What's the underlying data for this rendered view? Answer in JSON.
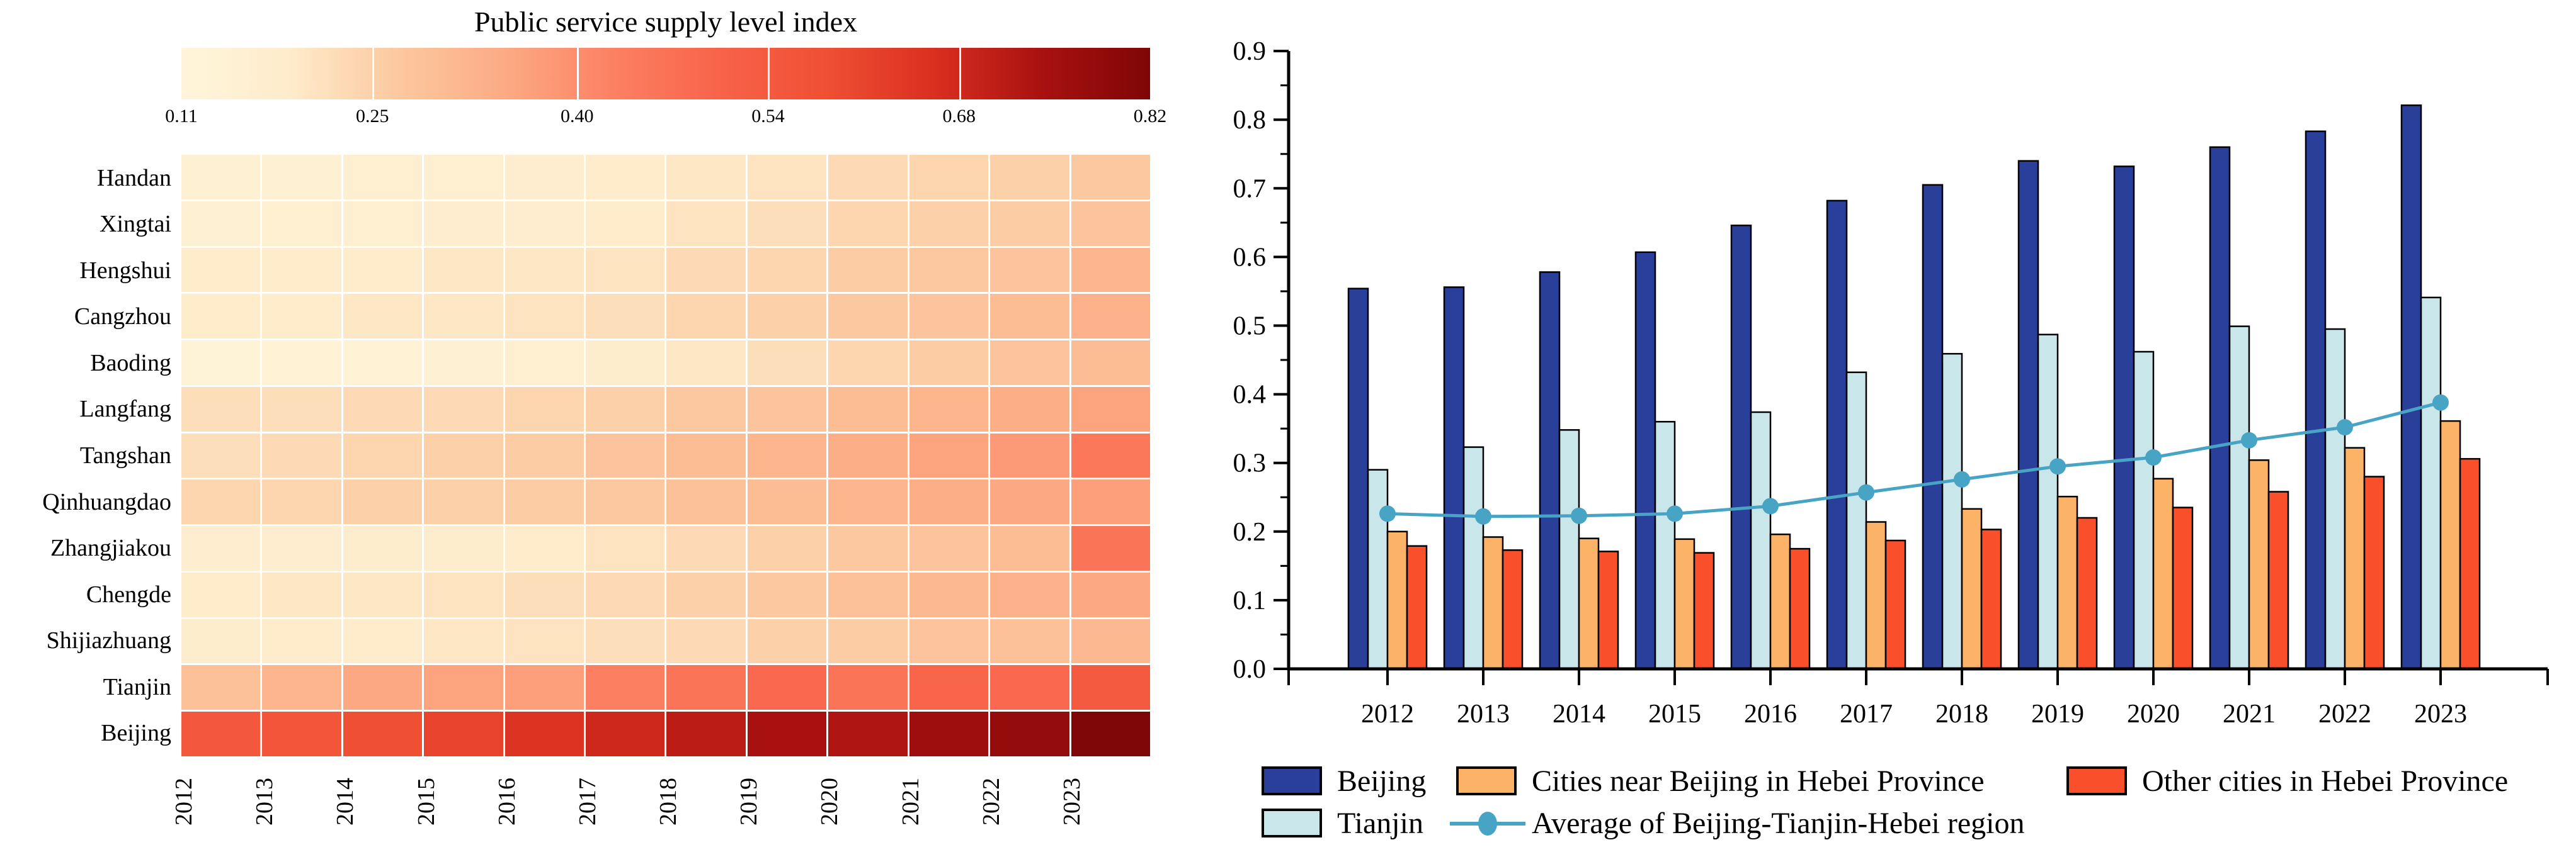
{
  "chart_data": [
    {
      "type": "heatmap",
      "title": "Public service supply level index",
      "colorbar": {
        "tick_labels": [
          "0.11",
          "0.25",
          "0.40",
          "0.54",
          "0.68",
          "0.82"
        ],
        "tick_values": [
          0.11,
          0.25,
          0.4,
          0.54,
          0.68,
          0.82
        ],
        "vmin": 0.11,
        "vmax": 0.82,
        "colormap_stops": [
          "#fff5db",
          "#feeccb",
          "#fcc9a0",
          "#fcab84",
          "#fc8163",
          "#f8634a",
          "#ef4f33",
          "#d92f20",
          "#a81110",
          "#7f0606"
        ]
      },
      "years": [
        "2012",
        "2013",
        "2014",
        "2015",
        "2016",
        "2017",
        "2018",
        "2019",
        "2020",
        "2021",
        "2022",
        "2023"
      ],
      "cities": [
        "Handan",
        "Xingtai",
        "Hengshui",
        "Cangzhou",
        "Baoding",
        "Langfang",
        "Tangshan",
        "Qinhuangdao",
        "Zhangjiakou",
        "Chengde",
        "Shijiazhuang",
        "Tianjin",
        "Beijing"
      ],
      "values": [
        [
          0.15,
          0.15,
          0.16,
          0.16,
          0.17,
          0.19,
          0.2,
          0.21,
          0.23,
          0.24,
          0.25,
          0.27
        ],
        [
          0.15,
          0.16,
          0.16,
          0.17,
          0.17,
          0.19,
          0.21,
          0.22,
          0.24,
          0.25,
          0.26,
          0.28
        ],
        [
          0.19,
          0.19,
          0.19,
          0.2,
          0.2,
          0.21,
          0.23,
          0.24,
          0.26,
          0.27,
          0.28,
          0.32
        ],
        [
          0.19,
          0.19,
          0.2,
          0.2,
          0.21,
          0.22,
          0.24,
          0.25,
          0.27,
          0.28,
          0.3,
          0.33
        ],
        [
          0.13,
          0.14,
          0.14,
          0.15,
          0.16,
          0.18,
          0.2,
          0.22,
          0.24,
          0.26,
          0.28,
          0.3
        ],
        [
          0.22,
          0.22,
          0.23,
          0.23,
          0.24,
          0.25,
          0.27,
          0.28,
          0.3,
          0.32,
          0.34,
          0.36
        ],
        [
          0.22,
          0.23,
          0.24,
          0.25,
          0.26,
          0.28,
          0.3,
          0.32,
          0.34,
          0.36,
          0.38,
          0.45
        ],
        [
          0.24,
          0.24,
          0.25,
          0.25,
          0.26,
          0.27,
          0.29,
          0.3,
          0.32,
          0.34,
          0.35,
          0.37
        ],
        [
          0.17,
          0.17,
          0.18,
          0.18,
          0.19,
          0.21,
          0.23,
          0.25,
          0.27,
          0.28,
          0.3,
          0.46
        ],
        [
          0.19,
          0.2,
          0.2,
          0.21,
          0.22,
          0.23,
          0.25,
          0.27,
          0.29,
          0.31,
          0.33,
          0.35
        ],
        [
          0.18,
          0.19,
          0.19,
          0.2,
          0.21,
          0.22,
          0.23,
          0.25,
          0.26,
          0.28,
          0.29,
          0.31
        ],
        [
          0.29,
          0.32,
          0.35,
          0.36,
          0.37,
          0.43,
          0.46,
          0.49,
          0.46,
          0.5,
          0.49,
          0.54
        ],
        [
          0.55,
          0.56,
          0.58,
          0.61,
          0.65,
          0.68,
          0.71,
          0.74,
          0.73,
          0.76,
          0.78,
          0.82
        ]
      ]
    },
    {
      "type": "bar",
      "categories": [
        "2012",
        "2013",
        "2014",
        "2015",
        "2016",
        "2017",
        "2018",
        "2019",
        "2020",
        "2021",
        "2022",
        "2023"
      ],
      "ylim": [
        0,
        0.9
      ],
      "y_tick_labels": [
        "0.0",
        "0.1",
        "0.2",
        "0.3",
        "0.4",
        "0.5",
        "0.6",
        "0.7",
        "0.8",
        "0.9"
      ],
      "series": [
        {
          "name": "Beijing",
          "color": "#2a3f99",
          "values": [
            0.554,
            0.556,
            0.578,
            0.607,
            0.646,
            0.682,
            0.705,
            0.74,
            0.732,
            0.76,
            0.783,
            0.821
          ]
        },
        {
          "name": "Tianjin",
          "color": "#c9e6ea",
          "values": [
            0.29,
            0.323,
            0.348,
            0.36,
            0.374,
            0.432,
            0.459,
            0.487,
            0.462,
            0.499,
            0.495,
            0.541
          ]
        },
        {
          "name": "Cities near Beijing in Hebei Province",
          "color": "#fcb368",
          "values": [
            0.2,
            0.192,
            0.19,
            0.189,
            0.196,
            0.214,
            0.233,
            0.251,
            0.277,
            0.304,
            0.322,
            0.361
          ]
        },
        {
          "name": "Other cities in Hebei Province",
          "color": "#f94f2a",
          "values": [
            0.179,
            0.173,
            0.171,
            0.169,
            0.175,
            0.187,
            0.203,
            0.22,
            0.235,
            0.258,
            0.28,
            0.306
          ]
        }
      ],
      "line_series": {
        "name": "Average of Beijing-Tianjin-Hebei region",
        "color": "#48a4c4",
        "values": [
          0.226,
          0.222,
          0.223,
          0.226,
          0.237,
          0.257,
          0.276,
          0.295,
          0.308,
          0.333,
          0.352,
          0.388
        ]
      },
      "legend": {
        "row1": [
          {
            "label": "Beijing",
            "swatch": "#2a3f99",
            "kind": "box"
          },
          {
            "label": "Cities near Beijing in Hebei Province",
            "swatch": "#fcb368",
            "kind": "box"
          },
          {
            "label": "Other cities in Hebei Province",
            "swatch": "#f94f2a",
            "kind": "box"
          }
        ],
        "row2": [
          {
            "label": "Tianjin",
            "swatch": "#c9e6ea",
            "kind": "box"
          },
          {
            "label": "Average of Beijing-Tianjin-Hebei region",
            "swatch": "#48a4c4",
            "kind": "line"
          }
        ]
      }
    }
  ]
}
